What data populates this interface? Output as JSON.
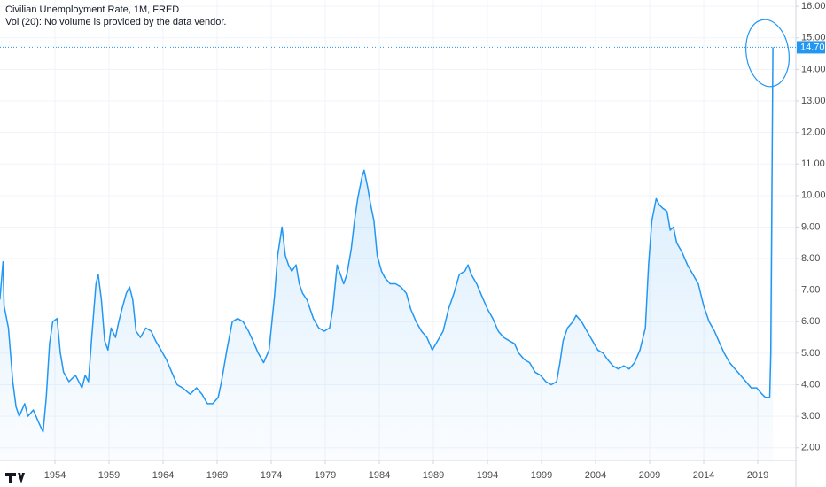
{
  "chart_data": {
    "type": "area",
    "title": "Civilian Unemployment Rate, 1M, FRED",
    "subtitle": "Vol (20): No volume is provided by the data vendor.",
    "color": "#2196f3",
    "x": [
      1948.9,
      1949.2,
      1949.3,
      1949.7,
      1950.1,
      1950.4,
      1950.7,
      1951.2,
      1951.5,
      1952.0,
      1952.5,
      1952.9,
      1953.2,
      1953.5,
      1953.8,
      1954.2,
      1954.5,
      1954.8,
      1955.3,
      1955.9,
      1956.5,
      1956.8,
      1957.1,
      1957.4,
      1957.8,
      1958.0,
      1958.3,
      1958.6,
      1958.9,
      1959.2,
      1959.6,
      1959.9,
      1960.2,
      1960.6,
      1960.9,
      1961.2,
      1961.5,
      1961.9,
      1962.4,
      1962.9,
      1963.3,
      1963.8,
      1964.3,
      1964.8,
      1965.3,
      1965.8,
      1966.5,
      1967.1,
      1967.6,
      1968.1,
      1968.6,
      1969.1,
      1969.4,
      1969.9,
      1970.4,
      1970.9,
      1971.4,
      1971.9,
      1972.3,
      1972.8,
      1973.3,
      1973.8,
      1974.3,
      1974.6,
      1975.0,
      1975.3,
      1975.6,
      1975.9,
      1976.3,
      1976.6,
      1976.9,
      1977.3,
      1977.6,
      1977.9,
      1978.4,
      1978.9,
      1979.4,
      1979.7,
      1980.1,
      1980.4,
      1980.7,
      1981.0,
      1981.4,
      1981.7,
      1982.0,
      1982.4,
      1982.6,
      1982.9,
      1983.2,
      1983.5,
      1983.8,
      1984.2,
      1984.5,
      1985.0,
      1985.5,
      1986.0,
      1986.5,
      1986.9,
      1987.4,
      1987.9,
      1988.4,
      1988.9,
      1989.4,
      1989.9,
      1990.4,
      1990.9,
      1991.4,
      1991.9,
      1992.2,
      1992.5,
      1993.0,
      1993.5,
      1994.0,
      1994.5,
      1995.0,
      1995.5,
      1996.0,
      1996.5,
      1996.9,
      1997.4,
      1997.9,
      1998.4,
      1998.9,
      1999.4,
      1999.9,
      2000.4,
      2000.7,
      2001.0,
      2001.4,
      2001.9,
      2002.2,
      2002.7,
      2003.2,
      2003.7,
      2004.2,
      2004.7,
      2005.1,
      2005.6,
      2006.1,
      2006.6,
      2007.1,
      2007.6,
      2008.1,
      2008.6,
      2008.9,
      2009.2,
      2009.6,
      2009.9,
      2010.2,
      2010.6,
      2010.9,
      2011.2,
      2011.5,
      2012.0,
      2012.5,
      2013.0,
      2013.5,
      2014.0,
      2014.5,
      2015.0,
      2015.5,
      2015.9,
      2016.4,
      2016.9,
      2017.4,
      2017.9,
      2018.4,
      2018.9,
      2019.4,
      2019.7,
      2020.1,
      2020.2,
      2020.4
    ],
    "values": [
      6.7,
      7.9,
      6.5,
      5.8,
      4.1,
      3.3,
      3.0,
      3.4,
      3.0,
      3.2,
      2.8,
      2.5,
      3.6,
      5.3,
      6.0,
      6.1,
      5.0,
      4.4,
      4.1,
      4.3,
      3.9,
      4.3,
      4.1,
      5.5,
      7.2,
      7.5,
      6.7,
      5.4,
      5.1,
      5.8,
      5.5,
      6.0,
      6.4,
      6.9,
      7.1,
      6.7,
      5.7,
      5.5,
      5.8,
      5.7,
      5.4,
      5.1,
      4.8,
      4.4,
      4.0,
      3.9,
      3.7,
      3.9,
      3.7,
      3.4,
      3.4,
      3.6,
      4.1,
      5.1,
      6.0,
      6.1,
      6.0,
      5.7,
      5.4,
      5.0,
      4.7,
      5.1,
      6.8,
      8.1,
      9.0,
      8.1,
      7.8,
      7.6,
      7.8,
      7.2,
      6.9,
      6.7,
      6.4,
      6.1,
      5.8,
      5.7,
      5.8,
      6.4,
      7.8,
      7.5,
      7.2,
      7.5,
      8.3,
      9.2,
      9.9,
      10.6,
      10.8,
      10.3,
      9.7,
      9.2,
      8.1,
      7.6,
      7.4,
      7.2,
      7.2,
      7.1,
      6.9,
      6.4,
      6.0,
      5.7,
      5.5,
      5.1,
      5.4,
      5.7,
      6.4,
      6.9,
      7.5,
      7.6,
      7.8,
      7.5,
      7.2,
      6.8,
      6.4,
      6.1,
      5.7,
      5.5,
      5.4,
      5.3,
      5.0,
      4.8,
      4.7,
      4.4,
      4.3,
      4.1,
      4.0,
      4.1,
      4.7,
      5.4,
      5.8,
      6.0,
      6.2,
      6.0,
      5.7,
      5.4,
      5.1,
      5.0,
      4.8,
      4.6,
      4.5,
      4.6,
      4.5,
      4.7,
      5.1,
      5.8,
      7.8,
      9.2,
      9.9,
      9.7,
      9.6,
      9.5,
      8.9,
      9.0,
      8.5,
      8.2,
      7.8,
      7.5,
      7.2,
      6.5,
      6.0,
      5.7,
      5.3,
      5.0,
      4.7,
      4.5,
      4.3,
      4.1,
      3.9,
      3.9,
      3.7,
      3.6,
      3.6,
      5.0,
      14.7
    ],
    "xlim": [
      1948.92,
      2022.52
    ],
    "xticks": [
      1954,
      1959,
      1964,
      1969,
      1974,
      1979,
      1984,
      1989,
      1994,
      1999,
      2004,
      2009,
      2014,
      2019
    ],
    "ylim": [
      1.6,
      16.2
    ],
    "yticks": [
      {
        "value": 2,
        "label": "2.00"
      },
      {
        "value": 3,
        "label": "3.00"
      },
      {
        "value": 4,
        "label": "4.00"
      },
      {
        "value": 5,
        "label": "5.00"
      },
      {
        "value": 6,
        "label": "6.00"
      },
      {
        "value": 7,
        "label": "7.00"
      },
      {
        "value": 8,
        "label": "8.00"
      },
      {
        "value": 9,
        "label": "9.00"
      },
      {
        "value": 10,
        "label": "10.00"
      },
      {
        "value": 11,
        "label": "11.00"
      },
      {
        "value": 12,
        "label": "12.00"
      },
      {
        "value": 13,
        "label": "13.00"
      },
      {
        "value": 14,
        "label": "14.00"
      },
      {
        "value": 15,
        "label": "15.00"
      },
      {
        "value": 16,
        "label": "16.00"
      }
    ],
    "last_value": {
      "value": 14.7,
      "label": "14.70"
    },
    "grid": true
  }
}
